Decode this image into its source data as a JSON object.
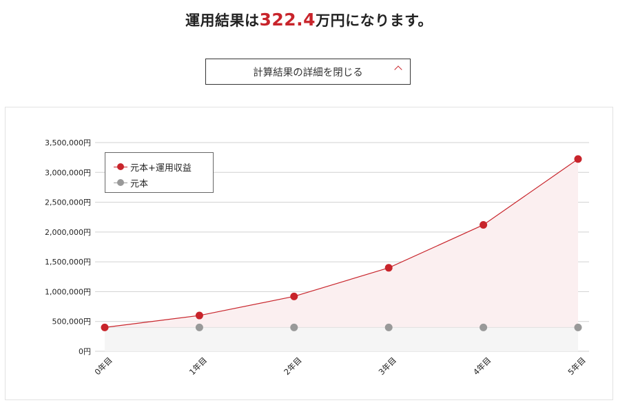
{
  "heading": {
    "prefix": "運用結果は",
    "amount": "322.4",
    "suffix": "万円になります。"
  },
  "toggle": {
    "label": "計算結果の詳細を閉じる",
    "icon": "chevron-up-icon"
  },
  "colors": {
    "accent": "#c8242b",
    "principal": "#999999",
    "area_total": "#fbeff0",
    "area_principal": "#f5f5f5",
    "grid": "#d0d0d0"
  },
  "chart_data": {
    "type": "area",
    "title": "",
    "xlabel": "",
    "ylabel": "",
    "categories": [
      "0年目",
      "1年目",
      "2年目",
      "3年目",
      "4年目",
      "5年目"
    ],
    "series": [
      {
        "name": "元本+運用収益",
        "values": [
          400000,
          600000,
          920000,
          1400000,
          2120000,
          3224000
        ]
      },
      {
        "name": "元本",
        "values": [
          400000,
          400000,
          400000,
          400000,
          400000,
          400000
        ]
      }
    ],
    "ylim": [
      0,
      3500000
    ],
    "yticks": [
      "0円",
      "500,000円",
      "1,000,000円",
      "1,500,000円",
      "2,000,000円",
      "2,500,000円",
      "3,000,000円",
      "3,500,000円"
    ],
    "ytick_values": [
      0,
      500000,
      1000000,
      1500000,
      2000000,
      2500000,
      3000000,
      3500000
    ],
    "grid": true,
    "legend_position": "top-left"
  }
}
